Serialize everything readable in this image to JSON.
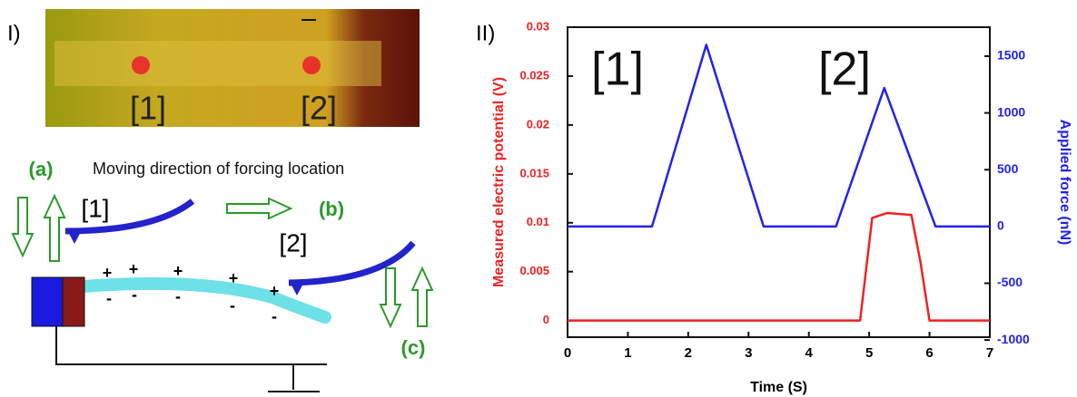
{
  "panel_labels": [
    "I)",
    "II)"
  ],
  "image": {
    "labels": [
      "[1]",
      "[2]"
    ]
  },
  "diagram": {
    "a": "(a)",
    "b": "(b)",
    "c": "(c)",
    "caption": "Moving direction of forcing location",
    "tip_labels": [
      "[1]",
      "[2]"
    ],
    "plus": [
      "+",
      "+",
      "+",
      "+",
      "+"
    ],
    "minus": [
      "-",
      "-",
      "-",
      "-",
      "-"
    ]
  },
  "chart_data": {
    "type": "line",
    "xlabel": "Time (S)",
    "ylabel": "Measured electric potential (V)",
    "y2label": "Applied force (nN)",
    "annotations": [
      "[1]",
      "[2]"
    ],
    "xlim": [
      0,
      7
    ],
    "xticks": [
      0,
      1,
      2,
      3,
      4,
      5,
      6,
      7
    ],
    "ylim": [
      -0.0017,
      0.03
    ],
    "yticks": [
      0,
      0.005,
      0.01,
      0.015,
      0.02,
      0.025,
      0.03
    ],
    "y2lim": [
      -975,
      1755
    ],
    "y2ticks": [
      -1000,
      -500,
      0,
      500,
      1000,
      1500
    ],
    "series": [
      {
        "color": "#ee2222",
        "x": [
          0,
          4.85,
          5.05,
          5.3,
          5.7,
          5.85,
          6.0,
          7
        ],
        "values": [
          0,
          0,
          0.0105,
          0.011,
          0.0108,
          0.006,
          0,
          0
        ]
      },
      {
        "color": "#2222ee",
        "axis": "y2",
        "x": [
          0,
          1.4,
          2.3,
          3.25,
          4.45,
          5.25,
          6.1,
          7
        ],
        "values": [
          0,
          0,
          1600,
          0,
          0,
          1220,
          0,
          0
        ]
      }
    ]
  }
}
